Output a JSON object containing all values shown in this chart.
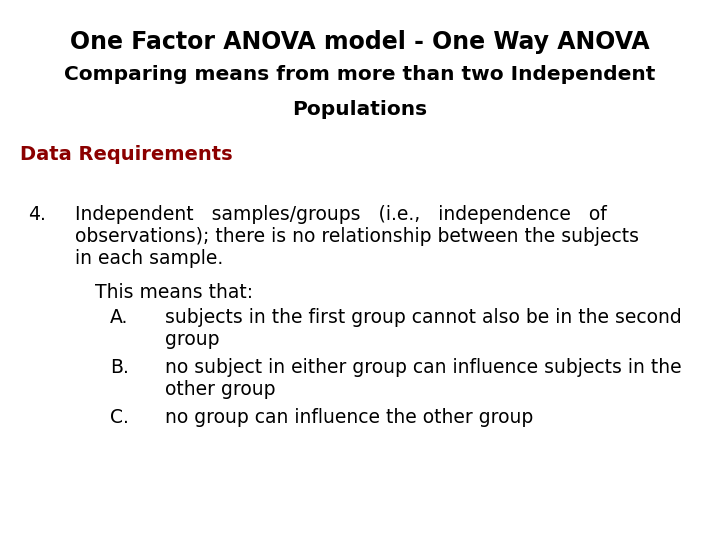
{
  "title_line1": "One Factor ANOVA model - One Way ANOVA",
  "title_line2": "Comparing means from more than two Independent",
  "title_line3": "Populations",
  "section_label": "Data Requirements",
  "item_number": "4.",
  "item_text_line1": "Independent   samples/groups   (i.e.,   independence   of",
  "item_text_line2": "observations); there is no relationship between the subjects",
  "item_text_line3": "in each sample.",
  "sub_intro": "This means that:",
  "sub_items": [
    {
      "label": "A.",
      "line1": "subjects in the first group cannot also be in the second",
      "line2": "group"
    },
    {
      "label": "B.",
      "line1": "no subject in either group can influence subjects in the",
      "line2": "other group"
    },
    {
      "label": "C.",
      "line1": "no group can influence the other group",
      "line2": ""
    }
  ],
  "bg_color": "#ffffff",
  "title_color": "#000000",
  "section_color": "#8B0000",
  "body_color": "#000000",
  "title_fontsize": 17,
  "subtitle_fontsize": 14.5,
  "section_fontsize": 14,
  "body_fontsize": 13.5
}
